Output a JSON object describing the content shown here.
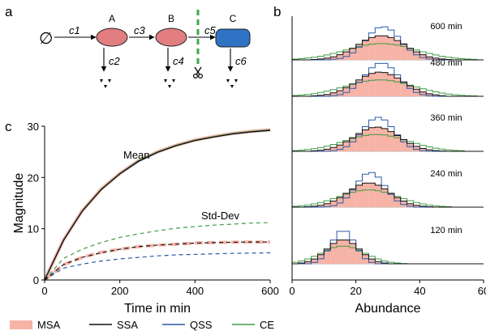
{
  "panels": {
    "a": "a",
    "b": "b",
    "c": "c"
  },
  "diagram": {
    "null_symbol": "∅",
    "nodes": [
      "A",
      "B",
      "C"
    ],
    "rates": [
      "c1",
      "c2",
      "c3",
      "c4",
      "c5",
      "c6"
    ],
    "colors": {
      "A": "#e27d80",
      "B": "#e27d80",
      "C": "#2f73c4",
      "cut": "#3aa94b"
    },
    "icons": [
      "scissors-icon",
      "degradation-icon"
    ]
  },
  "legend": {
    "items": [
      {
        "label": "MSA",
        "color": "#f6b3a6",
        "kind": "fill"
      },
      {
        "label": "SSA",
        "color": "#111111",
        "kind": "line"
      },
      {
        "label": "QSS",
        "color": "#2a5aa8",
        "kind": "line"
      },
      {
        "label": "CE",
        "color": "#3f9b45",
        "kind": "line"
      }
    ]
  },
  "chart_data": [
    {
      "type": "line",
      "panel": "c",
      "xlabel": "Time in min",
      "ylabel": "Magnitude",
      "xlim": [
        0,
        600
      ],
      "ylim": [
        0,
        30
      ],
      "xticks": [
        "0",
        "200",
        "400",
        "600"
      ],
      "yticks": [
        "0",
        "10",
        "20",
        "30"
      ],
      "annotations": [
        "Mean",
        "Std-Dev"
      ],
      "x": [
        0,
        50,
        100,
        150,
        200,
        250,
        300,
        350,
        400,
        450,
        500,
        550,
        600
      ],
      "series": [
        {
          "name": "MSA",
          "style": "solid",
          "values": [
            0,
            7.8,
            13.5,
            17.7,
            20.8,
            23.3,
            25.0,
            26.3,
            27.3,
            28.0,
            28.6,
            29.0,
            29.3
          ]
        },
        {
          "name": "SSA",
          "style": "solid",
          "values": [
            0,
            7.7,
            13.4,
            17.6,
            20.7,
            23.2,
            24.9,
            26.2,
            27.2,
            27.9,
            28.5,
            28.9,
            29.2
          ]
        },
        {
          "name": "QSS",
          "style": "solid",
          "values": [
            0,
            7.7,
            13.4,
            17.6,
            20.7,
            23.1,
            24.9,
            26.2,
            27.2,
            27.9,
            28.5,
            28.9,
            29.2
          ]
        },
        {
          "name": "CE",
          "style": "solid",
          "values": [
            0,
            7.8,
            13.5,
            17.7,
            20.8,
            23.3,
            25.0,
            26.3,
            27.3,
            28.0,
            28.6,
            29.0,
            29.3
          ]
        },
        {
          "name": "MSA",
          "style": "dashed",
          "values": [
            0,
            3.0,
            4.4,
            5.4,
            6.0,
            6.5,
            6.8,
            7.0,
            7.2,
            7.3,
            7.35,
            7.4,
            7.4
          ]
        },
        {
          "name": "SSA",
          "style": "dashed",
          "values": [
            0,
            3.0,
            4.4,
            5.3,
            6.0,
            6.5,
            6.8,
            7.0,
            7.2,
            7.3,
            7.35,
            7.4,
            7.4
          ]
        },
        {
          "name": "QSS",
          "style": "dashed",
          "values": [
            0,
            2.3,
            3.1,
            3.7,
            4.1,
            4.4,
            4.7,
            4.9,
            5.0,
            5.1,
            5.2,
            5.25,
            5.3
          ]
        },
        {
          "name": "CE",
          "style": "dashed",
          "values": [
            0,
            4.2,
            6.0,
            7.3,
            8.3,
            9.0,
            9.6,
            10.1,
            10.4,
            10.7,
            10.9,
            11.1,
            11.2
          ]
        }
      ]
    },
    {
      "type": "histogram",
      "panel": "b",
      "xlabel": "Abundance",
      "xlim": [
        0,
        60
      ],
      "xticks": [
        "0",
        "20",
        "40",
        "60"
      ],
      "bin_width": 2,
      "rows": [
        {
          "label": "600 min",
          "MSA": {
            "mean": 28,
            "sd": 7.4
          },
          "SSA": {
            "mean": 28,
            "sd": 7.4
          },
          "QSS": {
            "mean": 28.5,
            "sd": 5.4
          },
          "CE": {
            "mean": 28,
            "sd": 11
          }
        },
        {
          "label": "480 min",
          "MSA": {
            "mean": 27.5,
            "sd": 7.3
          },
          "SSA": {
            "mean": 27.5,
            "sd": 7.3
          },
          "QSS": {
            "mean": 28,
            "sd": 5.3
          },
          "CE": {
            "mean": 27.5,
            "sd": 10.8
          }
        },
        {
          "label": "360 min",
          "MSA": {
            "mean": 26.5,
            "sd": 7.0
          },
          "SSA": {
            "mean": 26.5,
            "sd": 7.0
          },
          "QSS": {
            "mean": 27,
            "sd": 5.0
          },
          "CE": {
            "mean": 26.5,
            "sd": 10.1
          }
        },
        {
          "label": "240 min",
          "MSA": {
            "mean": 24,
            "sd": 6.6
          },
          "SSA": {
            "mean": 24,
            "sd": 6.6
          },
          "QSS": {
            "mean": 24.5,
            "sd": 4.6
          },
          "CE": {
            "mean": 24,
            "sd": 9.3
          }
        },
        {
          "label": "120 min",
          "MSA": {
            "mean": 16,
            "sd": 5.0
          },
          "SSA": {
            "mean": 16,
            "sd": 5.0
          },
          "QSS": {
            "mean": 16,
            "sd": 3.6
          },
          "CE": {
            "mean": 16,
            "sd": 6.8
          }
        }
      ]
    }
  ]
}
